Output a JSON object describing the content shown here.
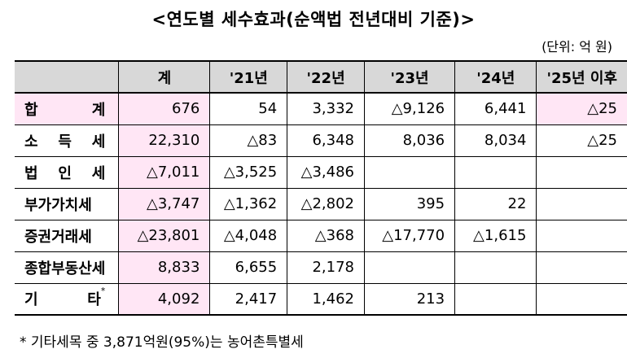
{
  "title": "<연도별 세수효과(순액법 전년대비 기준)>",
  "unit": "(단위: 억 원)",
  "headers": [
    "",
    "계",
    "'21년",
    "'22년",
    "'23년",
    "'24년",
    "'25년 이후"
  ],
  "rows": [
    {
      "label": "합 계",
      "cells": [
        "676",
        "54",
        "3,332",
        "△9,126",
        "6,441",
        "△25"
      ]
    },
    {
      "label": "소 득 세",
      "cells": [
        "22,310",
        "△83",
        "6,348",
        "8,036",
        "8,034",
        "△25"
      ]
    },
    {
      "label": "법 인 세",
      "cells": [
        "△7,011",
        "△3,525",
        "△3,486",
        "",
        "",
        ""
      ]
    },
    {
      "label": "부가가치세",
      "cells": [
        "△3,747",
        "△1,362",
        "△2,802",
        "395",
        "22",
        ""
      ]
    },
    {
      "label": "증권거래세",
      "cells": [
        "△23,801",
        "△4,048",
        "△368",
        "△17,770",
        "△1,615",
        ""
      ]
    },
    {
      "label": "종합부동산세",
      "cells": [
        "8,833",
        "6,655",
        "2,178",
        "",
        "",
        ""
      ]
    },
    {
      "label": "기 타",
      "mark": "*",
      "cells": [
        "4,092",
        "2,417",
        "1,462",
        "213",
        "",
        ""
      ]
    }
  ],
  "footnote": "* 기타세목 중 3,871억원(95%)는 농어촌특별세",
  "colors": {
    "header_bg": "#d8d8d8",
    "highlight_bg": "#ffe6f5"
  }
}
